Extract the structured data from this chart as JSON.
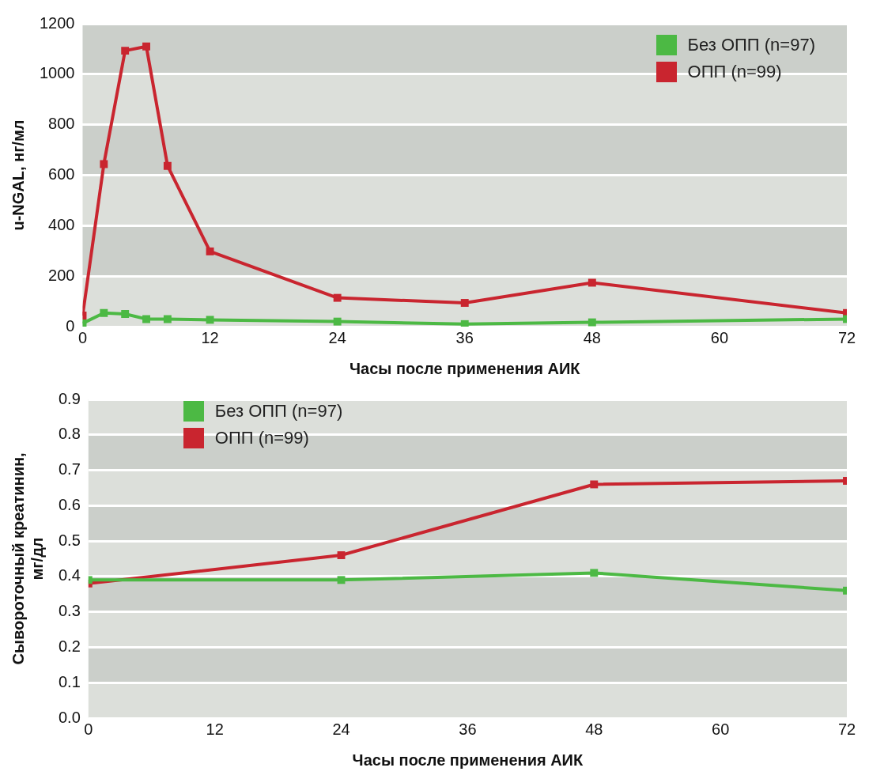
{
  "chart_data": [
    {
      "type": "line",
      "xlabel": "Часы после применения АИК",
      "ylabel": "u-NGAL, нг/мл",
      "x": [
        0,
        2,
        4,
        6,
        8,
        12,
        24,
        36,
        48,
        72
      ],
      "series": [
        {
          "name": "Без ОПП (n=97)",
          "color": "#4cb944",
          "values": [
            13,
            54,
            50,
            30,
            30,
            27,
            20,
            10,
            17,
            30
          ]
        },
        {
          "name": "ОПП (n=99)",
          "color": "#c9252f",
          "values": [
            44,
            644,
            1093,
            1110,
            637,
            298,
            114,
            94,
            174,
            54
          ]
        }
      ],
      "xlim": [
        0,
        72
      ],
      "xticks": [
        0,
        12,
        24,
        36,
        48,
        60,
        72
      ],
      "ylim": [
        0,
        1200
      ],
      "yticks": [
        0,
        200,
        400,
        600,
        800,
        1000,
        1200
      ],
      "grid": "y",
      "legend": "top right",
      "marker": "square",
      "line_style": "solid"
    },
    {
      "type": "line",
      "xlabel": "Часы после применения АИК",
      "ylabel": "Сывороточный креатинин,\nмг/дл",
      "x": [
        0,
        24,
        48,
        72
      ],
      "series": [
        {
          "name": "Без ОПП (n=97)",
          "color": "#4cb944",
          "values": [
            0.39,
            0.39,
            0.41,
            0.36
          ]
        },
        {
          "name": "ОПП (n=99)",
          "color": "#c9252f",
          "values": [
            0.38,
            0.46,
            0.66,
            0.67
          ]
        }
      ],
      "xlim": [
        0,
        72
      ],
      "xticks": [
        0,
        12,
        24,
        36,
        48,
        60,
        72
      ],
      "ylim": [
        0,
        0.9
      ],
      "yticks": [
        {
          "value": 0,
          "label": "0.0"
        },
        0.1,
        0.2,
        0.3,
        0.4,
        0.5,
        0.6,
        0.7,
        0.8,
        0.9
      ],
      "grid": "y",
      "legend": "top left",
      "marker": "square",
      "line_style": "solid"
    }
  ]
}
